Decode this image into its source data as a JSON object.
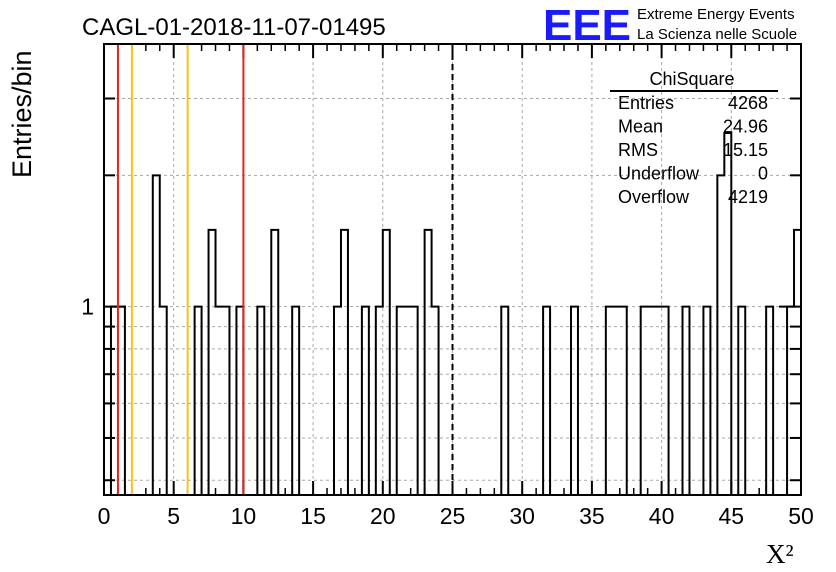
{
  "title": "CAGL-01-2018-11-07-01495",
  "logo": {
    "mark": "EEE",
    "line1": "Extreme Energy Events",
    "line2": "La Scienza nelle Scuole",
    "color": "#1a1aff"
  },
  "stats": {
    "name": "ChiSquare",
    "rows": [
      {
        "label": "Entries",
        "value": "4268"
      },
      {
        "label": "Mean",
        "value": "24.96"
      },
      {
        "label": "RMS",
        "value": "15.15"
      },
      {
        "label": "Underflow",
        "value": "0"
      },
      {
        "label": "Overflow",
        "value": "4219"
      }
    ]
  },
  "chart_data": {
    "type": "bar",
    "title": "CAGL-01-2018-11-07-01495",
    "xlabel": "X²",
    "ylabel": "Entries/bin",
    "xlim": [
      0,
      50
    ],
    "ylim": [
      0.37,
      4.0
    ],
    "yscale": "log",
    "grid": true,
    "bin_width": 0.5,
    "x_ticks": [
      "0",
      "5",
      "10",
      "15",
      "20",
      "25",
      "30",
      "35",
      "40",
      "45",
      "50"
    ],
    "y_ticks": [
      "1"
    ],
    "bins": [
      {
        "x": 0.5,
        "y": 1
      },
      {
        "x": 1.0,
        "y": 1
      },
      {
        "x": 3.5,
        "y": 2
      },
      {
        "x": 4.0,
        "y": 1
      },
      {
        "x": 6.5,
        "y": 1
      },
      {
        "x": 7.5,
        "y": 1.5
      },
      {
        "x": 8.0,
        "y": 1
      },
      {
        "x": 8.5,
        "y": 1
      },
      {
        "x": 9.5,
        "y": 1
      },
      {
        "x": 11.0,
        "y": 1
      },
      {
        "x": 12.0,
        "y": 1.5
      },
      {
        "x": 13.5,
        "y": 1
      },
      {
        "x": 16.5,
        "y": 1
      },
      {
        "x": 17.0,
        "y": 1.5
      },
      {
        "x": 18.5,
        "y": 1
      },
      {
        "x": 19.5,
        "y": 1
      },
      {
        "x": 20.0,
        "y": 1.5
      },
      {
        "x": 21.0,
        "y": 1
      },
      {
        "x": 21.5,
        "y": 1
      },
      {
        "x": 22.0,
        "y": 1
      },
      {
        "x": 23.0,
        "y": 1.5
      },
      {
        "x": 23.5,
        "y": 1
      },
      {
        "x": 28.5,
        "y": 1
      },
      {
        "x": 31.5,
        "y": 1
      },
      {
        "x": 33.5,
        "y": 1
      },
      {
        "x": 36.0,
        "y": 1
      },
      {
        "x": 36.5,
        "y": 1
      },
      {
        "x": 37.0,
        "y": 1
      },
      {
        "x": 38.5,
        "y": 1
      },
      {
        "x": 39.0,
        "y": 1
      },
      {
        "x": 39.5,
        "y": 1
      },
      {
        "x": 40.0,
        "y": 1
      },
      {
        "x": 41.5,
        "y": 1
      },
      {
        "x": 43.0,
        "y": 1
      },
      {
        "x": 44.0,
        "y": 2
      },
      {
        "x": 44.5,
        "y": 2.5
      },
      {
        "x": 45.5,
        "y": 1
      },
      {
        "x": 47.5,
        "y": 1
      },
      {
        "x": 49.0,
        "y": 1
      },
      {
        "x": 49.5,
        "y": 1.5
      }
    ],
    "vertical_lines": [
      {
        "x": 1,
        "color": "#e8221e",
        "style": "solid"
      },
      {
        "x": 2,
        "color": "#f5c518",
        "style": "solid"
      },
      {
        "x": 6,
        "color": "#f5c518",
        "style": "solid"
      },
      {
        "x": 10,
        "color": "#e8221e",
        "style": "solid"
      },
      {
        "x": 25,
        "color": "#000000",
        "style": "dashed"
      }
    ]
  }
}
